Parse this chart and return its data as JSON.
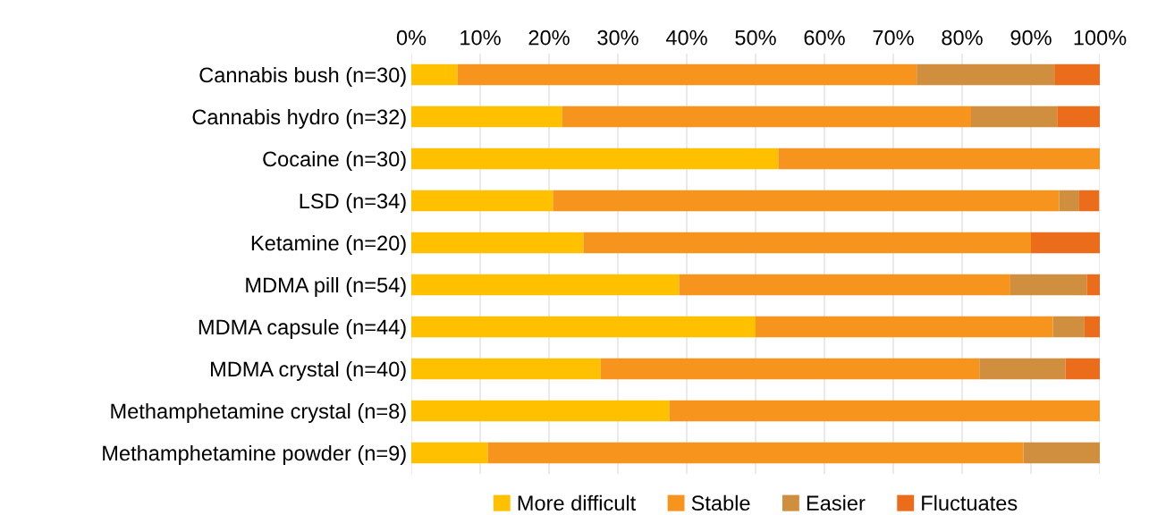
{
  "chart_data": {
    "type": "bar",
    "orientation": "horizontal",
    "stacked": true,
    "categories": [
      "Cannabis bush (n=30)",
      "Cannabis hydro (n=32)",
      "Cocaine (n=30)",
      "LSD (n=34)",
      "Ketamine (n=20)",
      "MDMA pill (n=54)",
      "MDMA capsule (n=44)",
      "MDMA crystal (n=40)",
      "Methamphetamine crystal (n=8)",
      "Methamphetamine powder (n=9)"
    ],
    "series": [
      {
        "name": "More difficult",
        "color": "#ffc000",
        "values": [
          6.7,
          21.9,
          53.3,
          20.6,
          25,
          38.9,
          50,
          27.5,
          37.5,
          11.1
        ]
      },
      {
        "name": "Stable",
        "color": "#f7941d",
        "values": [
          66.7,
          59.4,
          46.7,
          73.5,
          65,
          48.1,
          43.2,
          55,
          62.5,
          77.8
        ]
      },
      {
        "name": "Easier",
        "color": "#d08f3e",
        "values": [
          20,
          12.5,
          0,
          2.9,
          0,
          11.1,
          4.5,
          12.5,
          0,
          11.1
        ]
      },
      {
        "name": "Fluctuates",
        "color": "#eb6c1a",
        "values": [
          6.7,
          6.25,
          0,
          2.9,
          10,
          1.9,
          2.3,
          5,
          0,
          0
        ]
      }
    ],
    "xlim": [
      0,
      100
    ],
    "xticks": [
      {
        "value": 0,
        "label": "0%"
      },
      {
        "value": 10,
        "label": "10%"
      },
      {
        "value": 20,
        "label": "20%"
      },
      {
        "value": 30,
        "label": "30%"
      },
      {
        "value": 40,
        "label": "40%"
      },
      {
        "value": 50,
        "label": "50%"
      },
      {
        "value": 60,
        "label": "60%"
      },
      {
        "value": 70,
        "label": "70%"
      },
      {
        "value": 80,
        "label": "80%"
      },
      {
        "value": 90,
        "label": "90%"
      },
      {
        "value": 100,
        "label": "100%"
      }
    ],
    "grid": "x",
    "legend": "bottom"
  }
}
